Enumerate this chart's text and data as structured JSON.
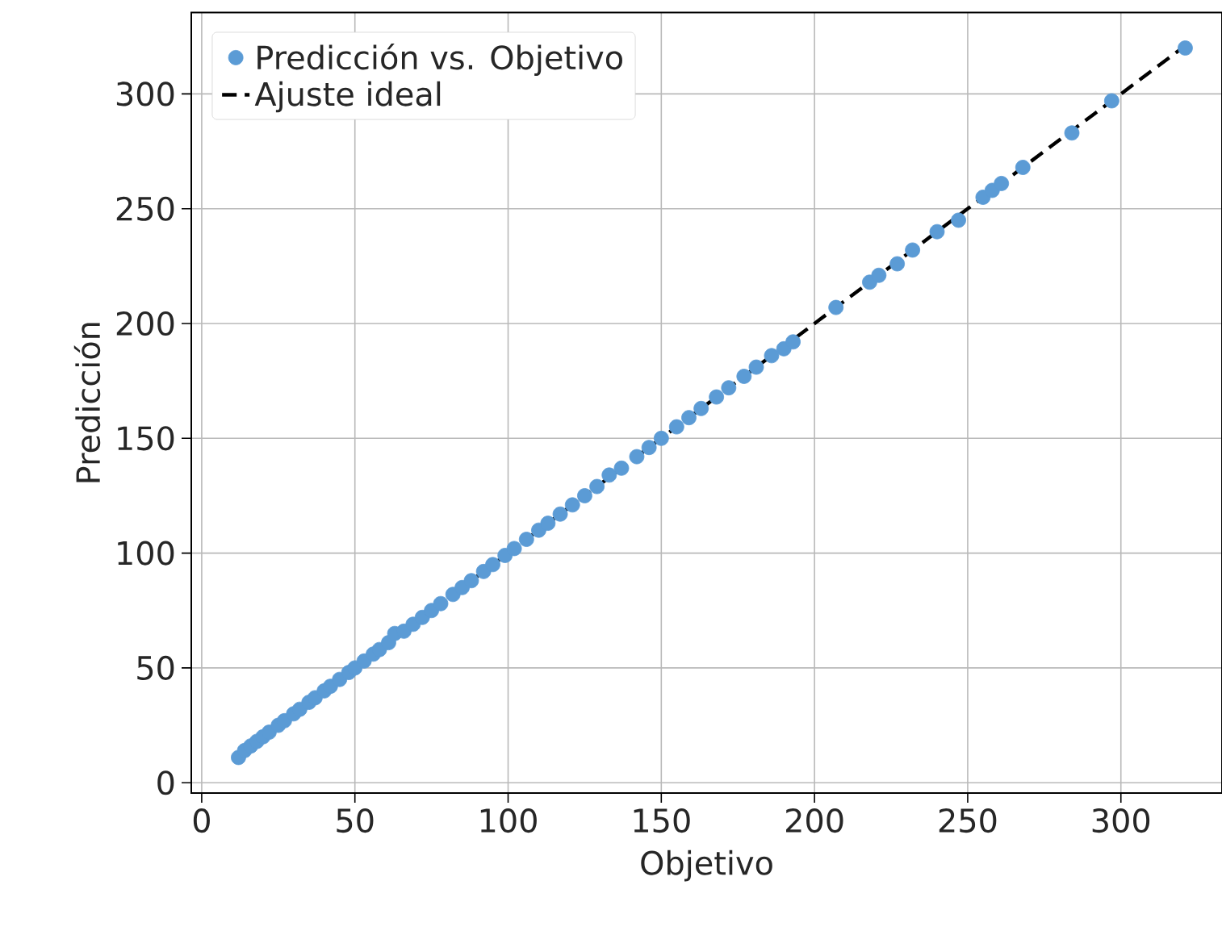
{
  "chart_data": {
    "type": "scatter",
    "xlabel": "Objetivo",
    "ylabel": "Predicción",
    "xlim": [
      -3.4,
      333
    ],
    "ylim": [
      -4.5,
      335.5
    ],
    "xticks": [
      0,
      50,
      100,
      150,
      200,
      250,
      300
    ],
    "yticks": [
      0,
      50,
      100,
      150,
      200,
      250,
      300
    ],
    "grid": true,
    "legend": "top left",
    "series": [
      {
        "name": "Predicción  vs. Objetivo",
        "color": "#5b9bd5",
        "marker": "circle",
        "x": [
          12,
          14,
          16,
          18,
          20,
          22,
          25,
          27,
          30,
          32,
          35,
          37,
          40,
          42,
          45,
          48,
          50,
          53,
          56,
          58,
          61,
          63,
          66,
          69,
          72,
          75,
          78,
          82,
          85,
          88,
          92,
          95,
          99,
          102,
          106,
          110,
          113,
          117,
          121,
          125,
          129,
          133,
          137,
          142,
          146,
          150,
          155,
          159,
          163,
          168,
          172,
          177,
          181,
          186,
          190,
          193,
          207,
          218,
          221,
          227,
          232,
          240,
          247,
          255,
          258,
          261,
          268,
          284,
          297,
          321
        ],
        "values": [
          11,
          14,
          16,
          18,
          20,
          22,
          25,
          27,
          30,
          32,
          35,
          37,
          40,
          42,
          45,
          48,
          50,
          53,
          56,
          58,
          61,
          65,
          66,
          69,
          72,
          75,
          78,
          82,
          85,
          88,
          92,
          95,
          99,
          102,
          106,
          110,
          113,
          117,
          121,
          125,
          129,
          134,
          137,
          142,
          146,
          150,
          155,
          159,
          163,
          168,
          172,
          177,
          181,
          186,
          189,
          192,
          207,
          218,
          221,
          226,
          232,
          240,
          245,
          255,
          258,
          261,
          268,
          283,
          297,
          320
        ]
      },
      {
        "name": "Ajuste ideal",
        "type": "line",
        "color": "#000000",
        "line_style": "dashed",
        "marker": "none",
        "x": [
          11,
          321
        ],
        "values": [
          11,
          321
        ]
      }
    ]
  }
}
